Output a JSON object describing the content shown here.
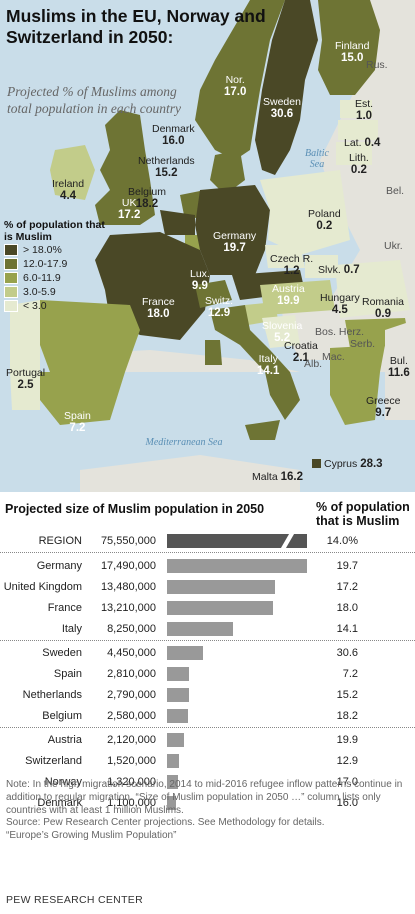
{
  "map": {
    "title": "Muslims in the EU, Norway and Switzerland in 2050:",
    "subtitle": "Projected % of Muslims among total population in each country",
    "legend_title": "% of population that is Muslim",
    "legend": [
      {
        "label": "> 18.0%",
        "color": "#4a4826"
      },
      {
        "label": "12.0-17.9",
        "color": "#6e7434"
      },
      {
        "label": "6.0-11.9",
        "color": "#97a24d"
      },
      {
        "label": "3.0-5.9",
        "color": "#c2cc8a"
      },
      {
        "label": "< 3.0",
        "color": "#e5ead0"
      }
    ],
    "countries": [
      {
        "name": "Finland",
        "value": "15.0"
      },
      {
        "name": "Nor.",
        "value": "17.0"
      },
      {
        "name": "Sweden",
        "value": "30.6"
      },
      {
        "name": "Est.",
        "value": "1.0"
      },
      {
        "name": "Lat.",
        "value": "0.4"
      },
      {
        "name": "Lith.",
        "value": "0.2"
      },
      {
        "name": "Denmark",
        "value": "16.0"
      },
      {
        "name": "Netherlands",
        "value": "15.2"
      },
      {
        "name": "Belgium",
        "value": "18.2"
      },
      {
        "name": "Ireland",
        "value": "4.4"
      },
      {
        "name": "UK",
        "value": "17.2"
      },
      {
        "name": "Germany",
        "value": "19.7"
      },
      {
        "name": "Poland",
        "value": "0.2"
      },
      {
        "name": "Lux.",
        "value": "9.9"
      },
      {
        "name": "Czech R.",
        "value": "1.2"
      },
      {
        "name": "Slvk.",
        "value": "0.7"
      },
      {
        "name": "France",
        "value": "18.0"
      },
      {
        "name": "Switz.",
        "value": "12.9"
      },
      {
        "name": "Austria",
        "value": "19.9"
      },
      {
        "name": "Hungary",
        "value": "4.5"
      },
      {
        "name": "Romania",
        "value": "0.9"
      },
      {
        "name": "Slovenia",
        "value": "5.2"
      },
      {
        "name": "Croatia",
        "value": "2.1"
      },
      {
        "name": "Italy",
        "value": "14.1"
      },
      {
        "name": "Portugal",
        "value": "2.5"
      },
      {
        "name": "Spain",
        "value": "7.2"
      },
      {
        "name": "Bul.",
        "value": "11.6"
      },
      {
        "name": "Greece",
        "value": "9.7"
      },
      {
        "name": "Malta",
        "value": "16.2"
      },
      {
        "name": "Cyprus",
        "value": "28.3"
      }
    ],
    "other_labels": [
      "Rus.",
      "Bel.",
      "Ukr.",
      "Bos. Herz.",
      "Serb.",
      "Mac.",
      "Alb."
    ],
    "seas": [
      "Baltic Sea",
      "Mediterranean Sea"
    ]
  },
  "chart_data": {
    "type": "bar",
    "title": "Projected size of Muslim population in 2050",
    "pct_header": "% of population that is Muslim",
    "region": {
      "label": "REGION",
      "amount": "75,550,000",
      "value": 75550000,
      "pct": "14.0%"
    },
    "categories": [
      "Germany",
      "United Kingdom",
      "France",
      "Italy",
      "Sweden",
      "Spain",
      "Netherlands",
      "Belgium",
      "Austria",
      "Switzerland",
      "Norway",
      "Denmark"
    ],
    "values": [
      17490000,
      13480000,
      13210000,
      8250000,
      4450000,
      2810000,
      2790000,
      2580000,
      2120000,
      1520000,
      1320000,
      1100000
    ],
    "amount_labels": [
      "17,490,000",
      "13,480,000",
      "13,210,000",
      "8,250,000",
      "4,450,000",
      "2,810,000",
      "2,790,000",
      "2,580,000",
      "2,120,000",
      "1,520,000",
      "1,320,000",
      "1,100,000"
    ],
    "pct_labels": [
      "19.7",
      "17.2",
      "18.0",
      "14.1",
      "30.6",
      "7.2",
      "15.2",
      "18.2",
      "19.9",
      "12.9",
      "17.0",
      "16.0"
    ],
    "xlim": [
      0,
      17490000
    ]
  },
  "footer": {
    "note": "Note: In the high migration scenario, 2014 to mid-2016 refugee inflow patterns continue in addition to regular migration. “Size of Muslim population in 2050 …” column lists only countries with at least 1 million Muslims.",
    "source": "Source: Pew Research Center projections. See Methodology for details.",
    "report": "“Europe’s Growing Muslim Population”",
    "brand": "PEW RESEARCH CENTER"
  }
}
